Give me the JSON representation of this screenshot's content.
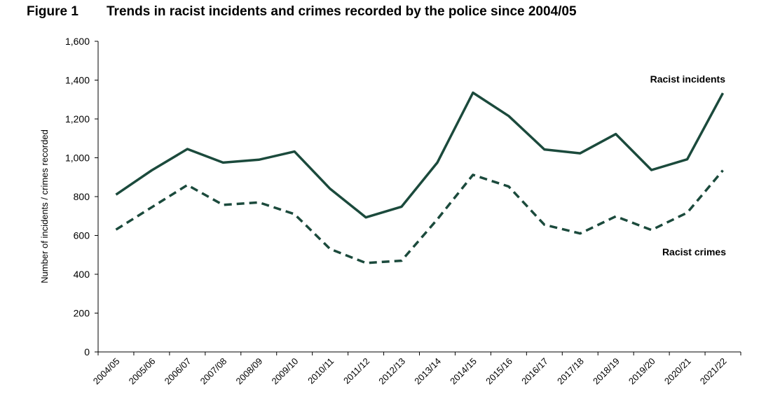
{
  "figure_label": "Figure 1",
  "chart_data": {
    "type": "line",
    "title": "Trends in racist incidents and crimes recorded by the police since 2004/05",
    "xlabel": "",
    "ylabel": "Number of incidents / crimes recorded",
    "ylim": [
      0,
      1600
    ],
    "yticks": [
      0,
      200,
      400,
      600,
      800,
      1000,
      1200,
      1400,
      1600
    ],
    "ytick_labels": [
      "0",
      "200",
      "400",
      "600",
      "800",
      "1,000",
      "1,200",
      "1,400",
      "1,600"
    ],
    "categories": [
      "2004/05",
      "2005/06",
      "2006/07",
      "2007/08",
      "2008/09",
      "2009/10",
      "2010/11",
      "2011/12",
      "2012/13",
      "2013/14",
      "2014/15",
      "2015/16",
      "2016/17",
      "2017/18",
      "2018/19",
      "2019/20",
      "2020/21",
      "2021/22"
    ],
    "grid": false,
    "series": [
      {
        "name": "Racist incidents",
        "style": "solid",
        "color": "#1b4a3c",
        "values": [
          810,
          935,
          1045,
          975,
          990,
          1032,
          840,
          693,
          748,
          975,
          1335,
          1215,
          1043,
          1023,
          1122,
          937,
          992,
          1333
        ]
      },
      {
        "name": "Racist crimes",
        "style": "dashed",
        "color": "#1b4a3c",
        "values": [
          630,
          745,
          860,
          757,
          770,
          710,
          530,
          458,
          470,
          683,
          912,
          852,
          655,
          610,
          698,
          628,
          717,
          935
        ]
      }
    ]
  }
}
